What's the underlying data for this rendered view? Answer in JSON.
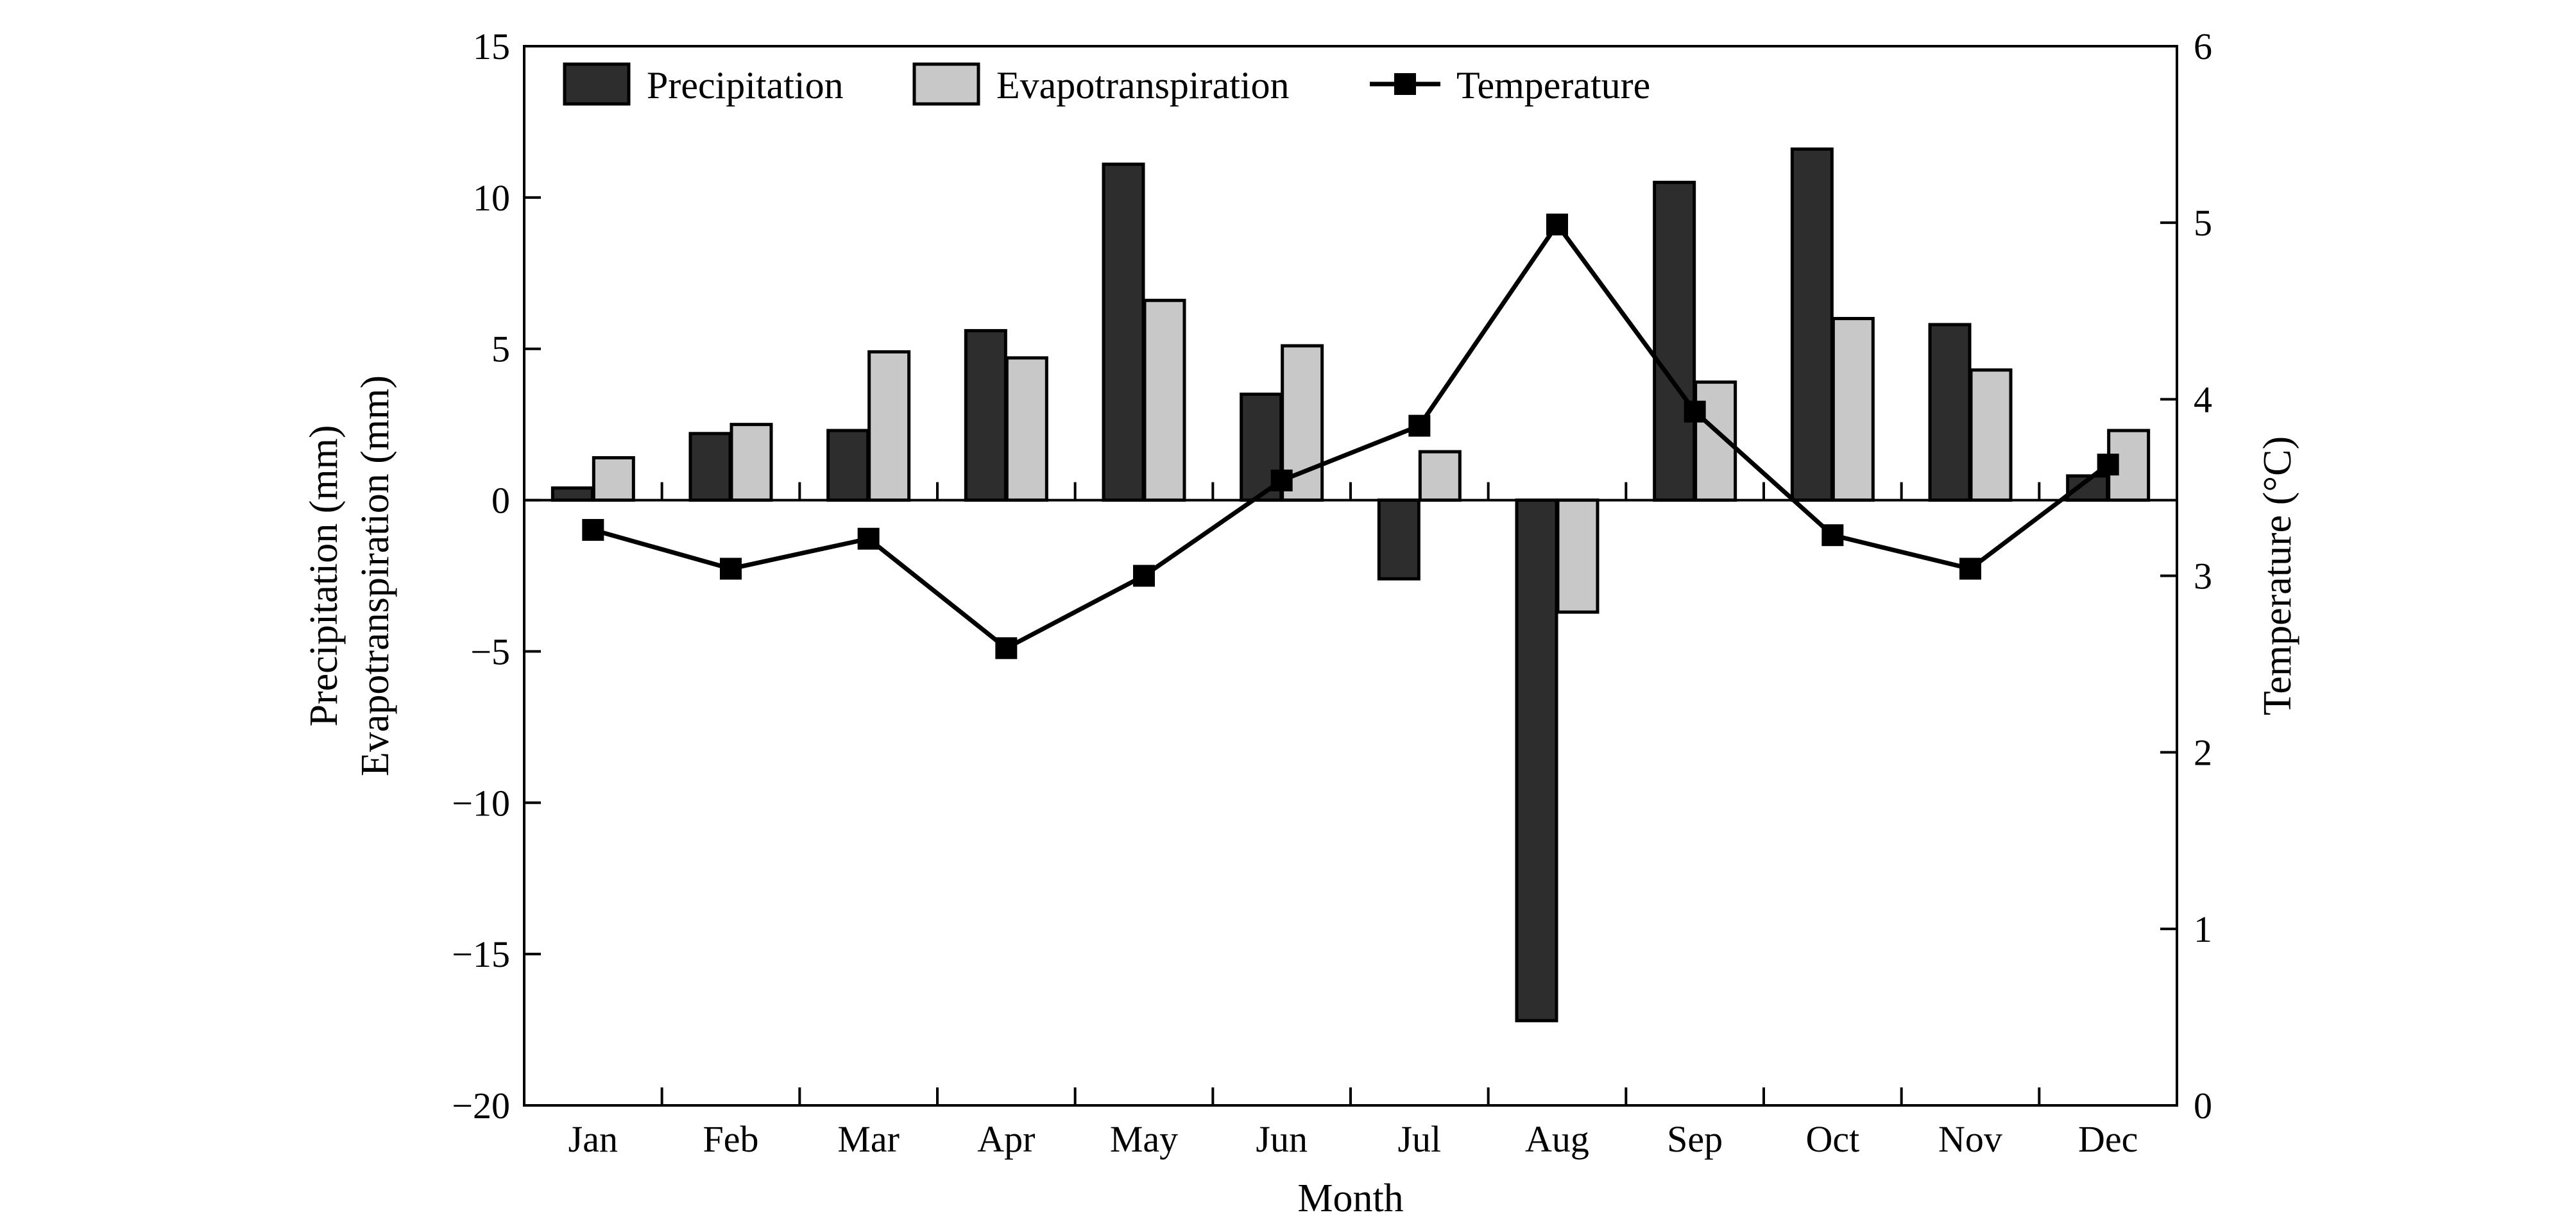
{
  "chart_data": {
    "type": "bar",
    "categories": [
      "Jan",
      "Feb",
      "Mar",
      "Apr",
      "May",
      "Jun",
      "Jul",
      "Aug",
      "Sep",
      "Oct",
      "Nov",
      "Dec"
    ],
    "series": [
      {
        "name": "Precipitation",
        "kind": "bar",
        "axis": "left",
        "color": "#2d2d2d",
        "values": [
          0.4,
          2.2,
          2.3,
          5.6,
          11.1,
          3.5,
          -2.6,
          -17.2,
          10.5,
          11.6,
          5.8,
          0.8
        ]
      },
      {
        "name": "Evapotranspiration",
        "kind": "bar",
        "axis": "left",
        "color": "#c8c8c8",
        "values": [
          1.4,
          2.5,
          4.9,
          4.7,
          6.6,
          5.1,
          1.6,
          -3.7,
          3.9,
          6.0,
          4.3,
          2.3
        ]
      },
      {
        "name": "Temperature",
        "kind": "line",
        "axis": "right",
        "color": "#000000",
        "marker": "square",
        "values": [
          3.26,
          3.04,
          3.21,
          2.59,
          3.0,
          3.54,
          3.85,
          4.99,
          3.93,
          3.23,
          3.04,
          3.63
        ]
      }
    ],
    "xlabel": "Month",
    "ylabel": [
      "Precipitation (mm)",
      "Evapotranspiration (mm)"
    ],
    "ylabel_right": "Temperature (°C)",
    "ylim": [
      -20,
      15
    ],
    "ylim_right": [
      0,
      6
    ],
    "yticks": [
      15,
      10,
      5,
      0,
      -5,
      -10,
      -15,
      -20
    ],
    "ytick_labels": [
      "15",
      "10",
      "5",
      "0",
      "−5",
      "−10",
      "−15",
      "−20"
    ],
    "yticks_right": [
      6,
      5,
      4,
      3,
      2,
      1,
      0
    ],
    "grid": false,
    "legend_position": "top-left"
  }
}
